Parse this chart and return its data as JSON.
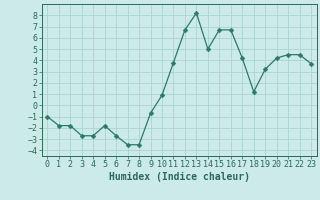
{
  "x": [
    0,
    1,
    2,
    3,
    4,
    5,
    6,
    7,
    8,
    9,
    10,
    11,
    12,
    13,
    14,
    15,
    16,
    17,
    18,
    19,
    20,
    21,
    22,
    23
  ],
  "y": [
    -1,
    -1.8,
    -1.8,
    -2.7,
    -2.7,
    -1.8,
    -2.7,
    -3.5,
    -3.5,
    -0.7,
    0.9,
    3.8,
    6.7,
    8.2,
    5.0,
    6.7,
    6.7,
    4.2,
    1.2,
    3.2,
    4.2,
    4.5,
    4.5,
    3.7
  ],
  "line_color": "#2a7a6a",
  "marker": "D",
  "marker_size": 2.5,
  "bg_color": "#cceae8",
  "grid_color": "#aad4d0",
  "xlabel": "Humidex (Indice chaleur)",
  "xlim": [
    -0.5,
    23.5
  ],
  "ylim": [
    -4.5,
    9.0
  ],
  "yticks": [
    -4,
    -3,
    -2,
    -1,
    0,
    1,
    2,
    3,
    4,
    5,
    6,
    7,
    8
  ],
  "xticks": [
    0,
    1,
    2,
    3,
    4,
    5,
    6,
    7,
    8,
    9,
    10,
    11,
    12,
    13,
    14,
    15,
    16,
    17,
    18,
    19,
    20,
    21,
    22,
    23
  ],
  "tick_color": "#2a6a5a",
  "label_color": "#2a6a5a",
  "xlabel_fontsize": 7,
  "tick_fontsize": 6
}
